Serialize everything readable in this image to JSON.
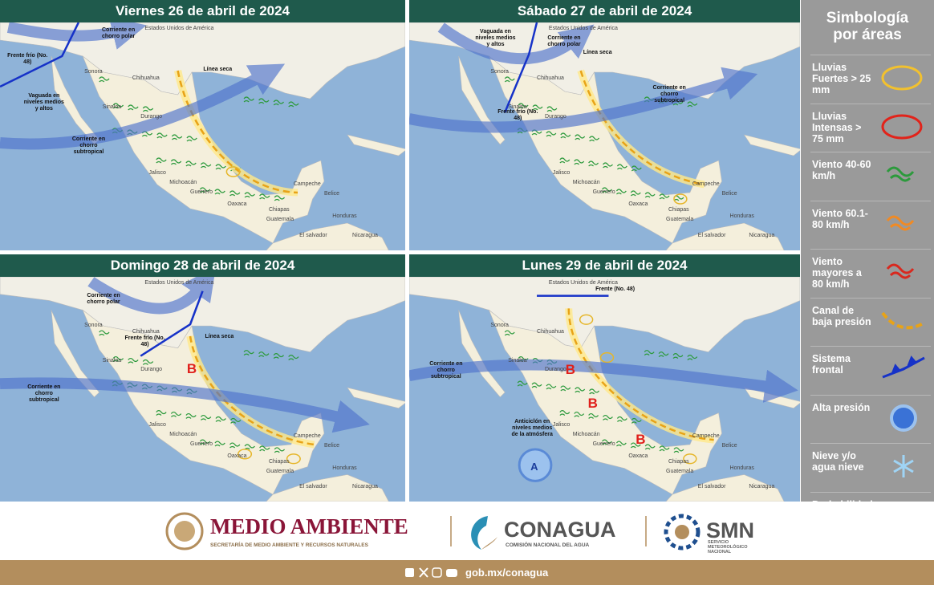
{
  "panels": [
    {
      "title": "Viernes 26 de abril de 2024",
      "places": [
        "Estados Unidos de América",
        "Sonora",
        "Chihuahua",
        "Sinaloa",
        "Durango",
        "Jalisco",
        "Michoacán",
        "Guerrero",
        "Oaxaca",
        "Chiapas",
        "Campeche",
        "Belice",
        "Guatemala",
        "Honduras",
        "El salvador",
        "Nicaragua"
      ],
      "notes": [
        "Corriente en chorro polar",
        "Frente frío (No. 48)",
        "Vaguada en niveles medios y altos",
        "Línea seca",
        "Corriente en chorro subtropical"
      ]
    },
    {
      "title": "Sábado 27 de abril de 2024",
      "places": [
        "Estados Unidos de América",
        "Sonora",
        "Chihuahua",
        "Sinaloa",
        "Durango",
        "Jalisco",
        "Michoacán",
        "Guerrero",
        "Oaxaca",
        "Chiapas",
        "Campeche",
        "Belice",
        "Guatemala",
        "Honduras",
        "El salvador",
        "Nicaragua"
      ],
      "notes": [
        "Vaguada en niveles medios y altos",
        "Corriente en chorro polar",
        "Línea seca",
        "Frente frío (No. 48)",
        "Corriente en chorro subtropical"
      ]
    },
    {
      "title": "Domingo 28 de abril de 2024",
      "places": [
        "Estados Unidos de América",
        "Sonora",
        "Chihuahua",
        "Sinaloa",
        "Durango",
        "Jalisco",
        "Michoacán",
        "Guerrero",
        "Oaxaca",
        "Chiapas",
        "Campeche",
        "Belice",
        "Guatemala",
        "Honduras",
        "El salvador",
        "Nicaragua"
      ],
      "notes": [
        "Corriente en chorro polar",
        "Frente frío (No. 48)",
        "Línea seca",
        "Corriente en chorro subtropical",
        "B"
      ]
    },
    {
      "title": "Lunes 29 de abril de 2024",
      "places": [
        "Estados Unidos de América",
        "Sonora",
        "Chihuahua",
        "Sinaloa",
        "Durango",
        "Jalisco",
        "Michoacán",
        "Guerrero",
        "Oaxaca",
        "Chiapas",
        "Campeche",
        "Belice",
        "Guatemala",
        "Honduras",
        "El salvador",
        "Nicaragua"
      ],
      "notes": [
        "Frente (No. 48)",
        "Corriente en chorro subtropical",
        "Anticiclón en niveles medios de la atmósfera",
        "B",
        "B",
        "B",
        "A"
      ]
    }
  ],
  "legend": {
    "title": "Simbología por áreas",
    "items": [
      "Lluvias Fuertes > 25 mm",
      "Lluvias Intensas > 75 mm",
      "Viento 40-60 km/h",
      "Viento 60.1-80 km/h",
      "Viento mayores a 80 km/h",
      "Canal de baja presión",
      "Sistema frontal",
      "Alta presión",
      "Nieve y/o agua nieve",
      "Probabilidad de tornados"
    ]
  },
  "footer": {
    "semarnat": "MEDIO AMBIENTE",
    "semarnat_sub": "SECRETARÍA DE MEDIO AMBIENTE Y RECURSOS NATURALES",
    "conagua": "CONAGUA",
    "conagua_sub": "COMISIÓN NACIONAL DEL AGUA",
    "smn": "SMN",
    "smn_sub": "SERVICIO METEOROLÓGICO NACIONAL",
    "web": "gob.mx/conagua"
  }
}
